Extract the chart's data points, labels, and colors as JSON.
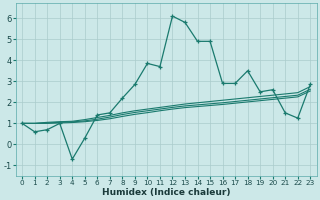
{
  "xlabel": "Humidex (Indice chaleur)",
  "bg_color": "#cce8e8",
  "grid_color": "#aacccc",
  "line_color": "#1a7a6e",
  "xlim": [
    -0.5,
    23.5
  ],
  "ylim": [
    -1.5,
    6.7
  ],
  "xticks": [
    0,
    1,
    2,
    3,
    4,
    5,
    6,
    7,
    8,
    9,
    10,
    11,
    12,
    13,
    14,
    15,
    16,
    17,
    18,
    19,
    20,
    21,
    22,
    23
  ],
  "yticks": [
    -1,
    0,
    1,
    2,
    3,
    4,
    5,
    6
  ],
  "main_line": [
    1.0,
    0.6,
    0.7,
    1.0,
    -0.7,
    0.3,
    1.4,
    1.5,
    2.2,
    2.85,
    3.85,
    3.7,
    6.1,
    5.8,
    4.9,
    4.9,
    2.9,
    2.9,
    3.5,
    2.5,
    2.6,
    1.5,
    1.25,
    2.85
  ],
  "line2": [
    1.0,
    1.0,
    1.05,
    1.08,
    1.1,
    1.18,
    1.28,
    1.38,
    1.5,
    1.6,
    1.68,
    1.76,
    1.84,
    1.92,
    1.98,
    2.04,
    2.1,
    2.16,
    2.22,
    2.28,
    2.34,
    2.4,
    2.46,
    2.75
  ],
  "line3": [
    1.0,
    1.0,
    1.02,
    1.05,
    1.07,
    1.12,
    1.2,
    1.3,
    1.42,
    1.52,
    1.6,
    1.68,
    1.76,
    1.83,
    1.88,
    1.93,
    1.98,
    2.04,
    2.1,
    2.16,
    2.22,
    2.28,
    2.34,
    2.62
  ],
  "line4": [
    1.0,
    1.0,
    1.0,
    1.02,
    1.04,
    1.08,
    1.14,
    1.22,
    1.33,
    1.43,
    1.51,
    1.6,
    1.68,
    1.75,
    1.8,
    1.85,
    1.9,
    1.96,
    2.02,
    2.08,
    2.14,
    2.2,
    2.26,
    2.54
  ]
}
